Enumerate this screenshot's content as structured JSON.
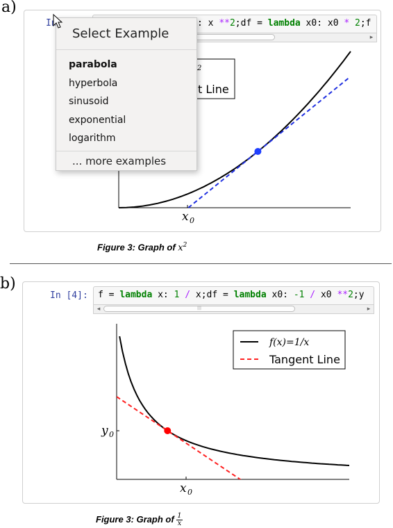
{
  "panel_a": {
    "label": "a)",
    "prompt": "In",
    "code_visible_tail": ": x **2;df = lambda x0: x0 * 2;f",
    "legend_superscript": "2",
    "legend_fragment": "t Line",
    "x_tick_label": "x",
    "x_tick_sub": "0",
    "caption_text": "Figure 3: Graph of ",
    "caption_math": "x",
    "caption_sup": "2"
  },
  "dropdown": {
    "title": "Select Example",
    "items": [
      "parabola",
      "hyperbola",
      "sinusoid",
      "exponential",
      "logarithm"
    ],
    "selected": "parabola",
    "more": "... more examples"
  },
  "panel_b": {
    "label": "b)",
    "prompt": "In [4]:",
    "code": "f = lambda x: 1 / x;df = lambda x0: -1 / x0 **2;y",
    "legend": [
      "f(x)=1/x",
      "Tangent Line"
    ],
    "x_tick_label": "x",
    "x_tick_sub": "0",
    "y_tick_label": "y",
    "y_tick_sub": "0",
    "caption_text": "Figure 3: Graph of ",
    "caption_num": "1",
    "caption_den": "x"
  },
  "scroll_grip": "|||",
  "colors": {
    "curve": "#000000",
    "tangent_a": "#1f2fe0",
    "point_a": "#1f3fff",
    "tangent_b": "#ff2020",
    "point_b": "#ff0000",
    "prompt": "#303f9f",
    "keyword": "#008000",
    "operator": "#aa22ff"
  },
  "chart_data": [
    {
      "type": "line",
      "series": [
        {
          "name": "",
          "function": "x^2"
        },
        {
          "name": "",
          "function": "tangent at x0",
          "style": "dashed"
        }
      ],
      "xticks": [
        "x0"
      ],
      "point": "x0"
    },
    {
      "type": "line",
      "series": [
        {
          "name": "f(x)=1/x",
          "function": "1/x"
        },
        {
          "name": "Tangent Line",
          "function": "tangent at x0",
          "style": "dashed"
        }
      ],
      "xticks": [
        "x0"
      ],
      "yticks": [
        "y0"
      ],
      "point": "x0",
      "legend_position": "top-right"
    }
  ]
}
